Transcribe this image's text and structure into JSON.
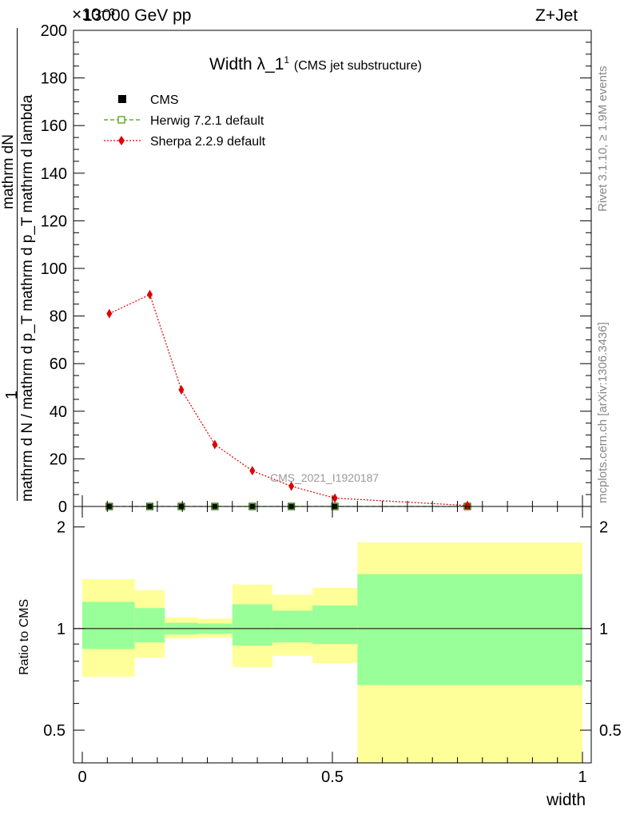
{
  "header": {
    "energy_label": "13000 GeV pp",
    "process_label": "Z+Jet",
    "exponent_label": "×10⁻³"
  },
  "side": {
    "rivet_label": "Rivet 3.1.10, ≥ 1.9M events",
    "mcplots_label": "mcplots.cern.ch [arXiv:1306.3436]"
  },
  "chart_data": [
    {
      "type": "line",
      "title": "Width λ_1",
      "title_sup": "1",
      "subtitle": "(CMS jet substructure)",
      "analysis_label": "CMS_2021_I1920187",
      "ylabel_top": "1",
      "ylabel_frac_num": "mathrm dN",
      "ylabel_frac_den": "mathrm d N / mathrm d p_T mathrm d p_T mathrm d lambda",
      "xlim": [
        0,
        1
      ],
      "ylim": [
        0,
        200
      ],
      "y_scale_note": "×10⁻³",
      "yticks": [
        0,
        20,
        40,
        60,
        80,
        100,
        120,
        140,
        160,
        180,
        200
      ],
      "ytick_labels": [
        "0",
        "20",
        "40",
        "60",
        "80",
        "100",
        "120",
        "140",
        "160",
        "180",
        "200"
      ],
      "legend_position": "top-left",
      "series": [
        {
          "name": "CMS",
          "color": "#000000",
          "marker": "square",
          "x": [
            0.054,
            0.135,
            0.198,
            0.265,
            0.34,
            0.418,
            0.505,
            0.77
          ],
          "values": [
            0,
            0,
            0,
            0,
            0,
            0,
            0,
            0
          ]
        },
        {
          "name": "Herwig 7.2.1 default",
          "color": "#4a9a00",
          "marker": "open-square",
          "line": "dashed",
          "x": [
            0.054,
            0.135,
            0.198,
            0.265,
            0.34,
            0.418,
            0.505,
            0.77
          ],
          "values": [
            0,
            0,
            0,
            0,
            0,
            0,
            0,
            0
          ]
        },
        {
          "name": "Sherpa 2.2.9 default",
          "color": "#e00000",
          "marker": "diamond",
          "line": "dotted",
          "x": [
            0.054,
            0.135,
            0.198,
            0.265,
            0.34,
            0.418,
            0.505,
            0.77
          ],
          "values": [
            81,
            89,
            49,
            26,
            15,
            8.5,
            3.5,
            0.4
          ]
        }
      ]
    },
    {
      "type": "area",
      "ylabel": "Ratio to CMS",
      "xlabel": "width",
      "xlim": [
        0,
        1
      ],
      "ylim": [
        0.4,
        2.3
      ],
      "y_scale": "log",
      "yticks": [
        0.5,
        1,
        2
      ],
      "ytick_labels": [
        "0.5",
        "1",
        "2"
      ],
      "xticks": [
        0,
        0.5,
        1
      ],
      "xtick_labels": [
        "0",
        "0.5",
        "1"
      ],
      "reference_line": 1,
      "band_colors": {
        "outer": "#ffff99",
        "inner": "#99ff99"
      },
      "bins": [
        {
          "x0": 0.0,
          "x1": 0.105,
          "outer_lo": 0.72,
          "outer_hi": 1.4,
          "inner_lo": 0.87,
          "inner_hi": 1.2
        },
        {
          "x0": 0.105,
          "x1": 0.165,
          "outer_lo": 0.82,
          "outer_hi": 1.3,
          "inner_lo": 0.91,
          "inner_hi": 1.15
        },
        {
          "x0": 0.165,
          "x1": 0.23,
          "outer_lo": 0.935,
          "outer_hi": 1.08,
          "inner_lo": 0.96,
          "inner_hi": 1.04
        },
        {
          "x0": 0.23,
          "x1": 0.3,
          "outer_lo": 0.94,
          "outer_hi": 1.07,
          "inner_lo": 0.965,
          "inner_hi": 1.035
        },
        {
          "x0": 0.3,
          "x1": 0.38,
          "outer_lo": 0.77,
          "outer_hi": 1.35,
          "inner_lo": 0.89,
          "inner_hi": 1.18
        },
        {
          "x0": 0.38,
          "x1": 0.46,
          "outer_lo": 0.83,
          "outer_hi": 1.26,
          "inner_lo": 0.91,
          "inner_hi": 1.13
        },
        {
          "x0": 0.46,
          "x1": 0.55,
          "outer_lo": 0.79,
          "outer_hi": 1.32,
          "inner_lo": 0.9,
          "inner_hi": 1.17
        },
        {
          "x0": 0.55,
          "x1": 1.0,
          "outer_lo": 0.4,
          "outer_hi": 1.8,
          "inner_lo": 0.68,
          "inner_hi": 1.45
        }
      ]
    }
  ]
}
